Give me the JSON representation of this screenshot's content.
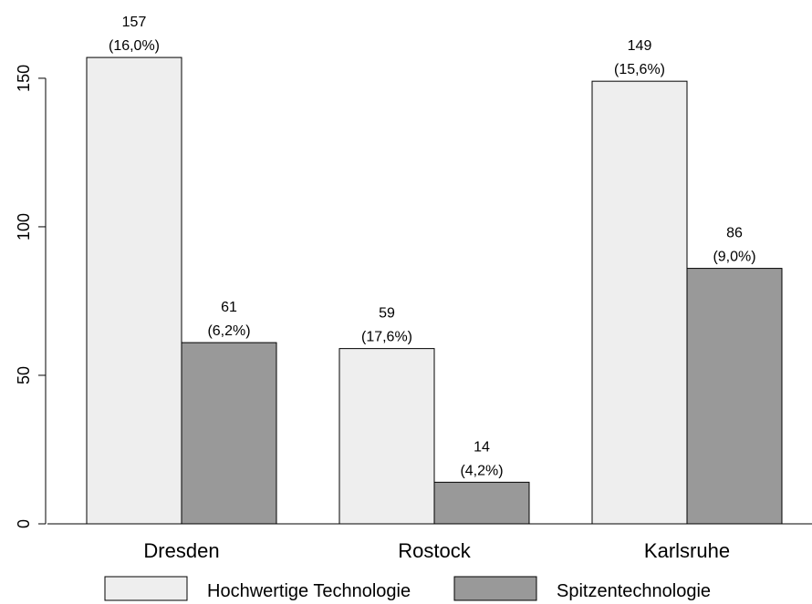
{
  "chart_data": {
    "type": "bar",
    "categories": [
      "Dresden",
      "Rostock",
      "Karlsruhe"
    ],
    "series": [
      {
        "name": "Hochwertige Technologie",
        "color": "#eeeeee",
        "values": [
          157,
          59,
          149
        ],
        "value_labels": [
          "(16,0%)",
          "(17,6%)",
          "(15,6%)"
        ]
      },
      {
        "name": "Spitzentechnologie",
        "color": "#999999",
        "values": [
          61,
          14,
          86
        ],
        "value_labels": [
          "(6,2%)",
          "(4,2%)",
          "(9,0%)"
        ]
      }
    ],
    "ylim": [
      0,
      165
    ],
    "yticks": [
      0,
      50,
      100,
      150
    ]
  }
}
